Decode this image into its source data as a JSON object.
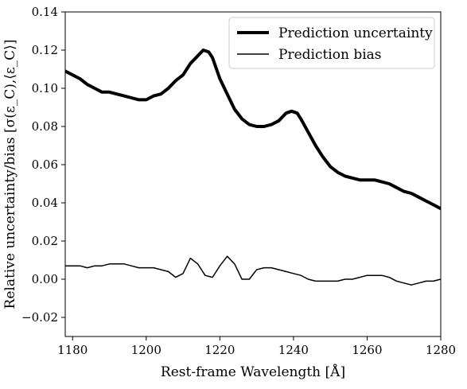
{
  "chart_data": {
    "type": "line",
    "title": "",
    "xlabel": "Rest-frame Wavelength [Å]",
    "ylabel": "Relative uncertainty/bias [σ(ε_C),⟨ε_C⟩]",
    "xlim": [
      1178,
      1280
    ],
    "ylim": [
      -0.03,
      0.14
    ],
    "xticks": [
      1180,
      1200,
      1220,
      1240,
      1260,
      1280
    ],
    "xtick_labels": [
      "1180",
      "1200",
      "1220",
      "1240",
      "1260",
      "1280"
    ],
    "yticks": [
      -0.02,
      0.0,
      0.02,
      0.04,
      0.06,
      0.08,
      0.1,
      0.12,
      0.14
    ],
    "ytick_labels": [
      "−0.02",
      "0.00",
      "0.02",
      "0.04",
      "0.06",
      "0.08",
      "0.10",
      "0.12",
      "0.14"
    ],
    "grid": false,
    "legend_position": "top-right",
    "series": [
      {
        "name": "Prediction uncertainty",
        "color": "#000000",
        "style": "thick",
        "x": [
          1178,
          1180,
          1182,
          1184,
          1186,
          1188,
          1190,
          1192,
          1194,
          1196,
          1198,
          1200,
          1202,
          1204,
          1206,
          1208,
          1210,
          1212,
          1214,
          1215.5,
          1217,
          1218,
          1220,
          1222,
          1224,
          1226,
          1228,
          1230,
          1232,
          1234,
          1236,
          1238,
          1239.5,
          1241,
          1242,
          1244,
          1246,
          1248,
          1250,
          1252,
          1254,
          1256,
          1258,
          1260,
          1262,
          1264,
          1266,
          1268,
          1270,
          1272,
          1274,
          1276,
          1278,
          1280
        ],
        "y": [
          0.109,
          0.107,
          0.105,
          0.102,
          0.1,
          0.098,
          0.098,
          0.097,
          0.096,
          0.095,
          0.094,
          0.094,
          0.096,
          0.097,
          0.1,
          0.104,
          0.107,
          0.113,
          0.117,
          0.12,
          0.119,
          0.116,
          0.105,
          0.097,
          0.089,
          0.084,
          0.081,
          0.08,
          0.08,
          0.081,
          0.083,
          0.087,
          0.088,
          0.087,
          0.084,
          0.077,
          0.07,
          0.064,
          0.059,
          0.056,
          0.054,
          0.053,
          0.052,
          0.052,
          0.052,
          0.051,
          0.05,
          0.048,
          0.046,
          0.045,
          0.043,
          0.041,
          0.039,
          0.037
        ]
      },
      {
        "name": "Prediction bias",
        "color": "#000000",
        "style": "thin",
        "x": [
          1178,
          1180,
          1182,
          1184,
          1186,
          1188,
          1190,
          1192,
          1194,
          1196,
          1198,
          1200,
          1202,
          1204,
          1206,
          1208,
          1210,
          1212,
          1214,
          1216,
          1218,
          1220,
          1222,
          1224,
          1226,
          1228,
          1230,
          1232,
          1234,
          1236,
          1238,
          1240,
          1242,
          1244,
          1246,
          1248,
          1250,
          1252,
          1254,
          1256,
          1258,
          1260,
          1262,
          1264,
          1266,
          1268,
          1270,
          1272,
          1274,
          1276,
          1278,
          1280
        ],
        "y": [
          0.007,
          0.007,
          0.007,
          0.006,
          0.007,
          0.007,
          0.008,
          0.008,
          0.008,
          0.007,
          0.006,
          0.006,
          0.006,
          0.005,
          0.004,
          0.001,
          0.003,
          0.011,
          0.008,
          0.002,
          0.001,
          0.007,
          0.012,
          0.008,
          0.0,
          0.0,
          0.005,
          0.006,
          0.006,
          0.005,
          0.004,
          0.003,
          0.002,
          0.0,
          -0.001,
          -0.001,
          -0.001,
          -0.001,
          0.0,
          0.0,
          0.001,
          0.002,
          0.002,
          0.002,
          0.001,
          -0.001,
          -0.002,
          -0.003,
          -0.002,
          -0.001,
          -0.001,
          0.0
        ]
      }
    ]
  }
}
